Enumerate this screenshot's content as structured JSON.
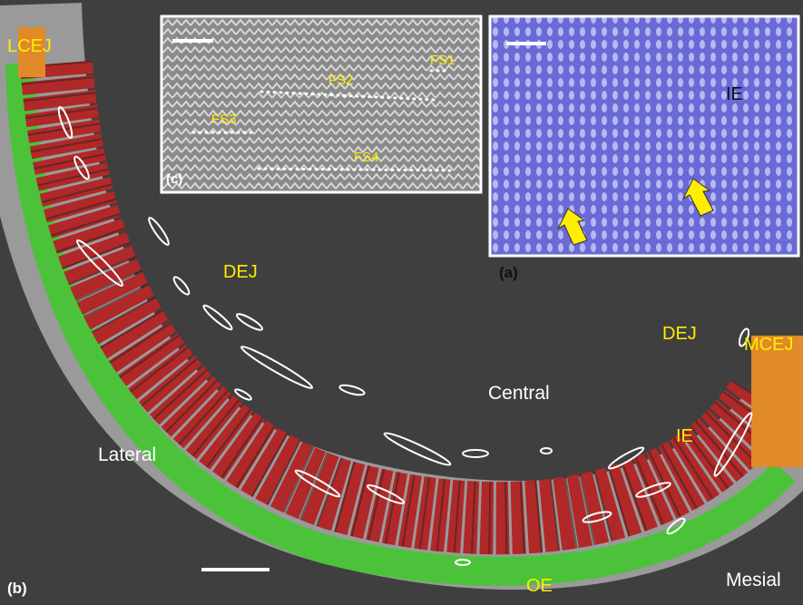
{
  "panels": {
    "b": {
      "label": "(b)",
      "lcej": "LCEJ",
      "mcej": "MCEJ",
      "dej_left": "DEJ",
      "dej_right": "DEJ",
      "central": "Central",
      "lateral": "Lateral",
      "ie": "IE",
      "oe": "OE",
      "mesial": "Mesial"
    },
    "c": {
      "label": "(c)",
      "fs1": "FS1",
      "fs2": "FS2",
      "fs3": "FS3",
      "fs4": "FS4"
    },
    "a": {
      "label": "(a)",
      "ie": "IE"
    }
  }
}
